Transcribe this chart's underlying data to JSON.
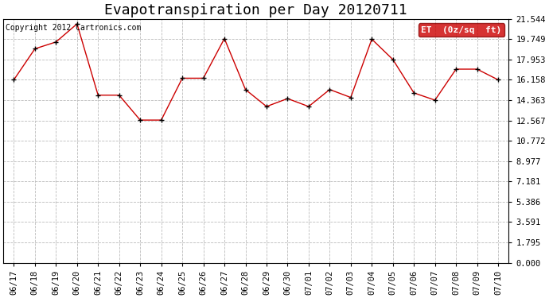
{
  "title": "Evapotranspiration per Day 20120711",
  "copyright": "Copyright 2012 Cartronics.com",
  "legend_label": "ET  (0z/sq  ft)",
  "x_labels": [
    "06/17",
    "06/18",
    "06/19",
    "06/20",
    "06/21",
    "06/22",
    "06/23",
    "06/24",
    "06/25",
    "06/26",
    "06/27",
    "06/28",
    "06/29",
    "06/30",
    "07/01",
    "07/02",
    "07/03",
    "07/04",
    "07/05",
    "07/06",
    "07/07",
    "07/08",
    "07/09",
    "07/10"
  ],
  "y_values": [
    16.158,
    18.9,
    19.5,
    21.1,
    14.8,
    14.8,
    12.6,
    12.6,
    16.3,
    16.3,
    19.8,
    15.3,
    13.8,
    14.5,
    13.8,
    15.3,
    14.6,
    19.749,
    17.953,
    15.0,
    14.363,
    17.1,
    17.1,
    16.158
  ],
  "yticks": [
    0.0,
    1.795,
    3.591,
    5.386,
    7.181,
    8.977,
    10.772,
    12.567,
    14.363,
    16.158,
    17.953,
    19.749,
    21.544
  ],
  "line_color": "#cc0000",
  "marker_color": "#000000",
  "background_color": "#ffffff",
  "grid_color": "#bbbbbb",
  "title_fontsize": 13,
  "legend_bg": "#cc0000",
  "legend_fg": "#ffffff",
  "ymin": 0.0,
  "ymax": 21.544
}
